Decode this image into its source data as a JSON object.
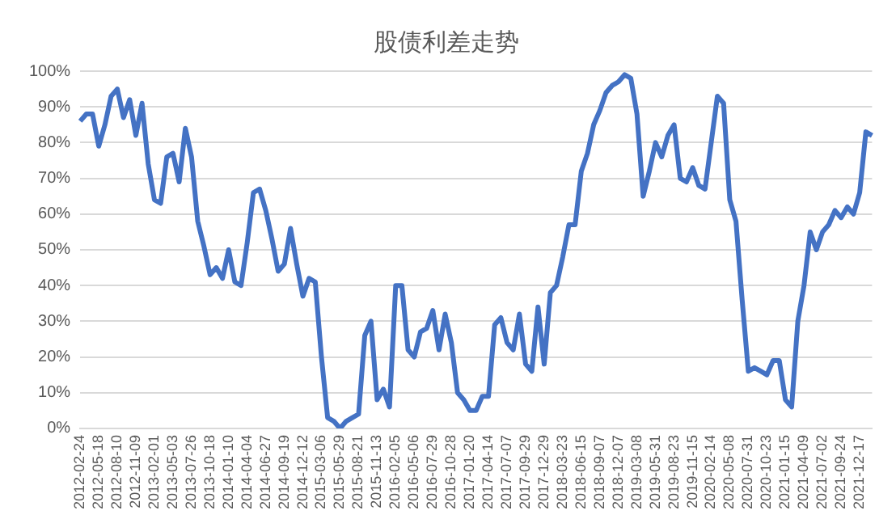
{
  "chart_data": {
    "type": "line",
    "title": "股债利差走势",
    "categories": [
      "2012-02-24",
      null,
      null,
      "2012-05-18",
      null,
      null,
      "2012-08-10",
      null,
      null,
      "2012-11-09",
      null,
      null,
      "2013-02-01",
      null,
      null,
      "2013-05-03",
      null,
      null,
      "2013-07-26",
      null,
      null,
      "2013-10-18",
      null,
      null,
      "2014-01-10",
      null,
      null,
      "2014-04-04",
      null,
      null,
      "2014-06-27",
      null,
      null,
      "2014-09-19",
      null,
      null,
      "2014-12-12",
      null,
      null,
      "2015-03-06",
      null,
      null,
      "2015-05-29",
      null,
      null,
      "2015-08-21",
      null,
      null,
      "2015-11-13",
      null,
      null,
      "2016-02-05",
      null,
      null,
      "2016-05-06",
      null,
      null,
      "2016-07-29",
      null,
      null,
      "2016-10-28",
      null,
      null,
      "2017-01-20",
      null,
      null,
      "2017-04-14",
      null,
      null,
      "2017-07-07",
      null,
      null,
      "2017-09-29",
      null,
      null,
      "2017-12-29",
      null,
      null,
      "2018-03-23",
      null,
      null,
      "2018-06-15",
      null,
      null,
      "2018-09-07",
      null,
      null,
      "2018-12-07",
      null,
      null,
      "2019-03-08",
      null,
      null,
      "2019-05-31",
      null,
      null,
      "2019-08-23",
      null,
      null,
      "2019-11-15",
      null,
      null,
      "2020-02-14",
      null,
      null,
      "2020-05-08",
      null,
      null,
      "2020-07-31",
      null,
      null,
      "2020-10-23",
      null,
      null,
      "2021-01-15",
      null,
      null,
      "2021-04-09",
      null,
      null,
      "2021-07-02",
      null,
      null,
      "2021-09-24",
      null,
      null,
      "2021-12-17",
      null,
      null
    ],
    "series": [
      {
        "color": "#4472c4",
        "values": [
          86,
          88,
          88,
          79,
          85,
          93,
          95,
          87,
          92,
          82,
          91,
          74,
          64,
          63,
          76,
          77,
          69,
          84,
          76,
          58,
          51,
          43,
          45,
          42,
          50,
          41,
          40,
          52,
          66,
          67,
          61,
          53,
          44,
          46,
          56,
          46,
          37,
          42,
          41,
          20,
          3,
          2,
          0,
          2,
          3,
          4,
          26,
          30,
          8,
          11,
          6,
          40,
          40,
          22,
          20,
          27,
          28,
          33,
          22,
          32,
          24,
          10,
          8,
          5,
          5,
          9,
          9,
          29,
          31,
          24,
          22,
          32,
          18,
          16,
          34,
          18,
          38,
          40,
          48,
          57,
          57,
          72,
          77,
          85,
          89,
          94,
          96,
          97,
          99,
          98,
          88,
          65,
          72,
          80,
          76,
          82,
          85,
          70,
          69,
          73,
          68,
          67,
          80,
          93,
          91,
          64,
          58,
          36,
          16,
          17,
          16,
          15,
          19,
          19,
          8,
          6,
          30,
          40,
          55,
          50,
          55,
          57,
          61,
          59,
          62,
          60,
          66,
          83,
          82
        ]
      }
    ],
    "ylim": [
      0,
      100
    ],
    "yticks": [
      {
        "value": 0,
        "label": "0%"
      },
      {
        "value": 10,
        "label": "10%"
      },
      {
        "value": 20,
        "label": "20%"
      },
      {
        "value": 30,
        "label": "30%"
      },
      {
        "value": 40,
        "label": "40%"
      },
      {
        "value": 50,
        "label": "50%"
      },
      {
        "value": 60,
        "label": "60%"
      },
      {
        "value": 70,
        "label": "70%"
      },
      {
        "value": 80,
        "label": "80%"
      },
      {
        "value": 90,
        "label": "90%"
      },
      {
        "value": 100,
        "label": "100%"
      }
    ],
    "grid": "y",
    "marker": "none",
    "line_style": "solid",
    "legend": false
  }
}
